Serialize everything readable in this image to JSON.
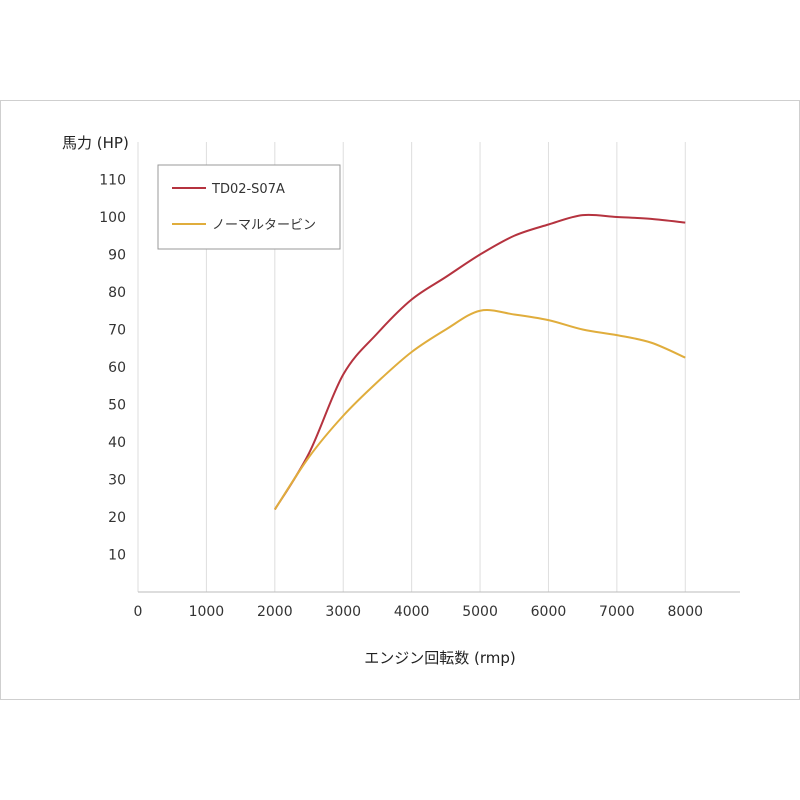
{
  "chart_data": {
    "type": "line",
    "ylabel": "馬力 (HP)",
    "xlabel": "エンジン回転数 (rmp)",
    "xlim": [
      0,
      8800
    ],
    "ylim": [
      0,
      120
    ],
    "x_ticks": [
      0,
      1000,
      2000,
      3000,
      4000,
      5000,
      6000,
      7000,
      8000
    ],
    "y_ticks": [
      10,
      20,
      30,
      40,
      50,
      60,
      70,
      80,
      90,
      100,
      110
    ],
    "grid": "vertical",
    "legend_position": "top-left",
    "series": [
      {
        "name": "TD02-S07A",
        "color": "#b5333f",
        "points": [
          [
            2000,
            22
          ],
          [
            2500,
            37
          ],
          [
            3000,
            58
          ],
          [
            3500,
            69
          ],
          [
            4000,
            78
          ],
          [
            4500,
            84
          ],
          [
            5000,
            90
          ],
          [
            5500,
            95
          ],
          [
            6000,
            98
          ],
          [
            6500,
            100.5
          ],
          [
            7000,
            100
          ],
          [
            7500,
            99.5
          ],
          [
            8000,
            98.5
          ]
        ]
      },
      {
        "name": "ノーマルタービン",
        "color": "#e0ad3c",
        "points": [
          [
            2000,
            22
          ],
          [
            2500,
            36
          ],
          [
            3000,
            47
          ],
          [
            3500,
            56
          ],
          [
            4000,
            64
          ],
          [
            4500,
            70
          ],
          [
            5000,
            75
          ],
          [
            5500,
            74
          ],
          [
            6000,
            72.5
          ],
          [
            6500,
            70
          ],
          [
            7000,
            68.5
          ],
          [
            7500,
            66.5
          ],
          [
            8000,
            62.5
          ]
        ]
      }
    ]
  }
}
